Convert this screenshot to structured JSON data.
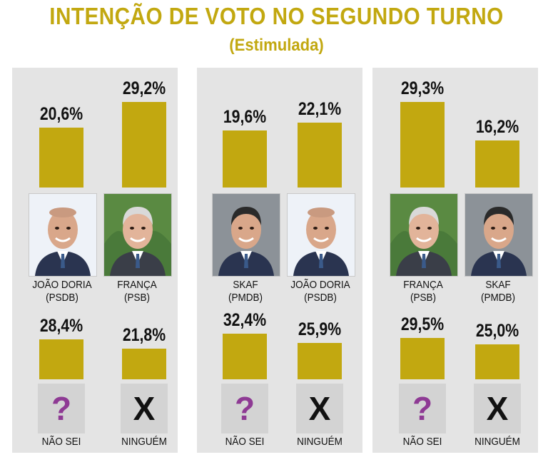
{
  "title": "INTENÇÃO DE VOTO NO SEGUNDO TURNO",
  "subtitle": "(Estimulada)",
  "colors": {
    "bar": "#c2a810",
    "panel": "#e4e4e4",
    "question": "#8e3a94"
  },
  "chart_data": [
    {
      "type": "bar",
      "categories": [
        "JOÃO DORIA (PSDB)",
        "FRANÇA (PSB)",
        "NÃO SEI",
        "NINGUÉM"
      ],
      "values": [
        20.6,
        29.2,
        28.4,
        21.8
      ],
      "labels": [
        "20,6%",
        "29,2%",
        "28,4%",
        "21,8%"
      ],
      "candidates": [
        {
          "name": "JOÃO DORIA",
          "party": "(PSDB)",
          "photo": "doria"
        },
        {
          "name": "FRANÇA",
          "party": "(PSB)",
          "photo": "franca"
        }
      ],
      "options": [
        {
          "name": "NÃO SEI",
          "icon": "?",
          "icon_name": "question-mark-icon"
        },
        {
          "name": "NINGUÉM",
          "icon": "X",
          "icon_name": "x-mark-icon"
        }
      ]
    },
    {
      "type": "bar",
      "categories": [
        "SKAF (PMDB)",
        "JOÃO DORIA (PSDB)",
        "NÃO SEI",
        "NINGUÉM"
      ],
      "values": [
        19.6,
        22.1,
        32.4,
        25.9
      ],
      "labels": [
        "19,6%",
        "22,1%",
        "32,4%",
        "25,9%"
      ],
      "candidates": [
        {
          "name": "SKAF",
          "party": "(PMDB)",
          "photo": "skaf"
        },
        {
          "name": "JOÃO DORIA",
          "party": "(PSDB)",
          "photo": "doria"
        }
      ],
      "options": [
        {
          "name": "NÃO SEI",
          "icon": "?",
          "icon_name": "question-mark-icon"
        },
        {
          "name": "NINGUÉM",
          "icon": "X",
          "icon_name": "x-mark-icon"
        }
      ]
    },
    {
      "type": "bar",
      "categories": [
        "FRANÇA (PSB)",
        "SKAF (PMDB)",
        "NÃO SEI",
        "NINGUÉM"
      ],
      "values": [
        29.3,
        16.2,
        29.5,
        25.0
      ],
      "labels": [
        "29,3%",
        "16,2%",
        "29,5%",
        "25,0%"
      ],
      "candidates": [
        {
          "name": "FRANÇA",
          "party": "(PSB)",
          "photo": "franca"
        },
        {
          "name": "SKAF",
          "party": "(PMDB)",
          "photo": "skaf"
        }
      ],
      "options": [
        {
          "name": "NÃO SEI",
          "icon": "?",
          "icon_name": "question-mark-icon"
        },
        {
          "name": "NINGUÉM",
          "icon": "X",
          "icon_name": "x-mark-icon"
        }
      ]
    }
  ]
}
